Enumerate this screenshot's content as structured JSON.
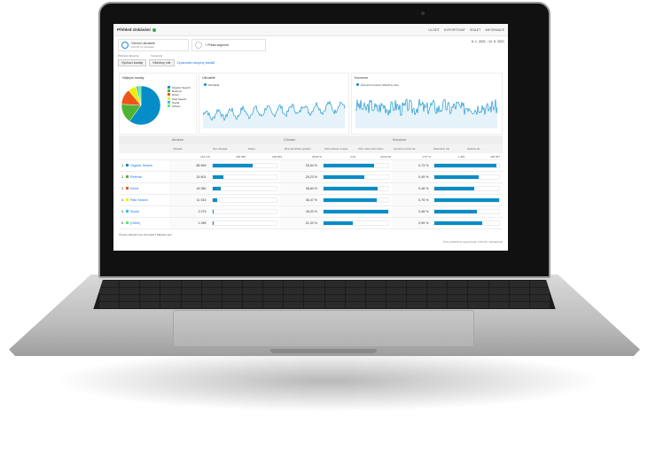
{
  "header": {
    "title": "Přehled získávání",
    "buttons": [
      "ULOŽIT",
      "EXPORTOVAT",
      "SDÍLET",
      "INFORMACE"
    ]
  },
  "segments": {
    "active": "Všichni uživatelé",
    "active_sub": "100,00 % Uživatelé",
    "add": "+ Přidat segment"
  },
  "date_range": "6. 1. 2021 - 12. 6. 2021",
  "controls": {
    "dim_label": "Primární dimenze",
    "dim_value": "Výchozí kanály",
    "conv_label": "Konverze",
    "conv_value": "Všechny cíle",
    "link": "Zpracování skupiny kanálů"
  },
  "panels": {
    "pie_title": "Nejlepší kanály",
    "users_title": "Uživatelé",
    "users_legend": "Uživatelé",
    "conv_title": "Konverze",
    "conv_legend": "Konverzní poměr (Všechny cíle)"
  },
  "pie": [
    {
      "name": "Organic Search",
      "pct": 60,
      "color": "#058dc7"
    },
    {
      "name": "Referral",
      "pct": 16,
      "color": "#50b432"
    },
    {
      "name": "Direct",
      "pct": 13,
      "color": "#ed561b"
    },
    {
      "name": "Paid Search",
      "pct": 7,
      "color": "#edef00"
    },
    {
      "name": "Social",
      "pct": 2,
      "color": "#24cbe5"
    },
    {
      "name": "(Other)",
      "pct": 2,
      "color": "#64e572"
    }
  ],
  "table": {
    "groups": [
      "Akvizice",
      "Chování",
      "Konverze"
    ],
    "columns": [
      "Uživatelé",
      "Noví uživatelé",
      "Relace",
      "Míra okamžitého opuštění",
      "Počet stránek na relaci",
      "Prům. doba trvání relace",
      "Konverzní poměr cíle",
      "Dokončené cíle",
      "Hodnota cíle"
    ],
    "totals": [
      "142 170",
      "135 050",
      "229 804",
      "35,80 %",
      "3,36",
      "00:02:29",
      "0,57 %",
      "1 405",
      "138 057"
    ],
    "rows": [
      {
        "n": "1",
        "name": "Organic Search",
        "users": "86 469",
        "ub": 62,
        "bounce": "39,54 %",
        "bb": 79,
        "conv": "0,73 %",
        "cb": 96
      },
      {
        "n": "2",
        "name": "Referral",
        "users": "24 601",
        "ub": 17,
        "bounce": "29,23 %",
        "bb": 64,
        "conv": "0,49 %",
        "cb": 68
      },
      {
        "n": "3",
        "name": "Direct",
        "users": "18 380",
        "ub": 13,
        "bounce": "38,84 %",
        "bb": 84,
        "conv": "0,48 %",
        "cb": 62
      },
      {
        "n": "4",
        "name": "Paid Search",
        "users": "11 515",
        "ub": 8,
        "bounce": "36,47 %",
        "bb": 83,
        "conv": "0,75 %",
        "cb": 100
      },
      {
        "n": "5",
        "name": "Social",
        "users": "3 279",
        "ub": 2,
        "bounce": "45,03 %",
        "bb": 100,
        "conv": "0,48 %",
        "cb": 66
      },
      {
        "n": "6",
        "name": "(Other)",
        "users": "1 289",
        "ub": 1,
        "bounce": "21,03 %",
        "bb": 46,
        "conv": "0,59 %",
        "cb": 74
      }
    ]
  },
  "footer": {
    "left": "Chcete zobrazit více informací? Klikněte sem.",
    "right": "Tento přehled byl vygenerován 13:02:22 • Aktualizovat"
  }
}
